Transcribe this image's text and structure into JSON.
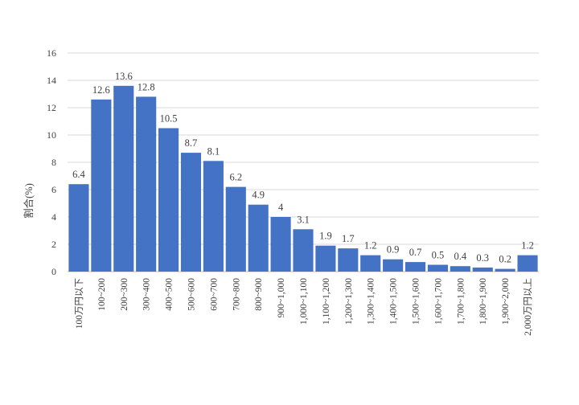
{
  "chart_data": {
    "type": "bar",
    "ylabel": "割合(%)",
    "xlabel": "",
    "ylim": [
      0,
      16
    ],
    "yticks": [
      0,
      2,
      4,
      6,
      8,
      10,
      12,
      14,
      16
    ],
    "grid": true,
    "categories": [
      "100万円以下",
      "100~200",
      "200~300",
      "300~400",
      "400~500",
      "500~600",
      "600~700",
      "700~800",
      "800~900",
      "900~1,000",
      "1,000~1,100",
      "1,100~1,200",
      "1,200~1,300",
      "1,300~1,400",
      "1,400~1,500",
      "1,500~1,600",
      "1,600~1,700",
      "1,700~1,800",
      "1,800~1,900",
      "1,900~2,000",
      "2,000万円以上"
    ],
    "values": [
      6.4,
      12.6,
      13.6,
      12.8,
      10.5,
      8.7,
      8.1,
      6.2,
      4.9,
      4,
      3.1,
      1.9,
      1.7,
      1.2,
      0.9,
      0.7,
      0.5,
      0.4,
      0.3,
      0.2,
      1.2
    ],
    "colors": {
      "bar": "#4472c4"
    }
  }
}
